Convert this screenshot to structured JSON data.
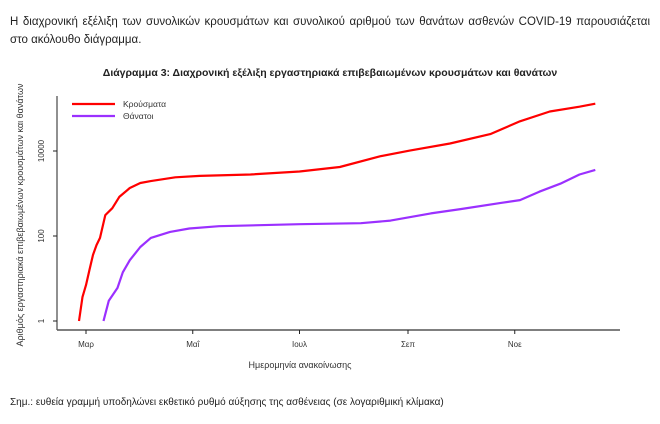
{
  "intro_text": "Η διαχρονική εξέλιξη των συνολικών κρουσμάτων και συνολικού αριθμού των θανάτων ασθενών COVID-19 παρουσιάζεται στο ακόλουθο διάγραμμα.",
  "note": "Σημ.: ευθεία γραμμή υποδηλώνει εκθετικό ρυθμό αύξησης της ασθένειας (σε λογαριθμική κλίμακα)",
  "chart_data": {
    "type": "line",
    "title": "Διάγραμμα 3: Διαχρονική εξέλιξη εργαστηριακά επιβεβαιωμένων κρουσμάτων και θανάτων",
    "xlabel": "Ημερομηνία ανακοίνωσης",
    "ylabel": "Αριθμός εργαστηριακά επιβεβαιωμένων κρουσμάτων και θανάτων",
    "y_scale": "log",
    "ylim": [
      1,
      200000
    ],
    "xlim_days_since_mar1": [
      -8,
      300
    ],
    "x_ticks": [
      {
        "label": "Μαρ",
        "day": 0
      },
      {
        "label": "Μαΐ",
        "day": 61
      },
      {
        "label": "Ιουλ",
        "day": 122
      },
      {
        "label": "Σεπ",
        "day": 184
      },
      {
        "label": "Νοε",
        "day": 245
      }
    ],
    "y_ticks": [
      {
        "label": "1",
        "value": 1
      },
      {
        "label": "100",
        "value": 100
      },
      {
        "label": "10000",
        "value": 10000
      }
    ],
    "legend_position": "top-left",
    "x_unit": "days since 1 March",
    "series": [
      {
        "name": "Κρούσματα",
        "color": "#ff0000",
        "points": [
          [
            -4,
            1
          ],
          [
            -2,
            3.7
          ],
          [
            0,
            7
          ],
          [
            2,
            16
          ],
          [
            4,
            36
          ],
          [
            6,
            61
          ],
          [
            8,
            90
          ],
          [
            11,
            310
          ],
          [
            15,
            450
          ],
          [
            19,
            830
          ],
          [
            25,
            1350
          ],
          [
            31,
            1770
          ],
          [
            37,
            1960
          ],
          [
            51,
            2400
          ],
          [
            65,
            2600
          ],
          [
            94,
            2800
          ],
          [
            122,
            3300
          ],
          [
            145,
            4200
          ],
          [
            168,
            7500
          ],
          [
            185,
            10200
          ],
          [
            208,
            15000
          ],
          [
            231,
            25000
          ],
          [
            248,
            50000
          ],
          [
            265,
            85000
          ],
          [
            282,
            110000
          ],
          [
            291,
            130000
          ]
        ]
      },
      {
        "name": "Θάνατοι",
        "color": "#9b30ff",
        "points": [
          [
            10,
            1
          ],
          [
            13,
            3
          ],
          [
            18,
            6
          ],
          [
            21,
            14
          ],
          [
            25,
            27
          ],
          [
            31,
            55
          ],
          [
            37,
            90
          ],
          [
            48,
            125
          ],
          [
            59,
            150
          ],
          [
            76,
            170
          ],
          [
            122,
            190
          ],
          [
            157,
            200
          ],
          [
            174,
            230
          ],
          [
            197,
            340
          ],
          [
            214,
            430
          ],
          [
            237,
            600
          ],
          [
            248,
            700
          ],
          [
            259,
            1100
          ],
          [
            271,
            1700
          ],
          [
            282,
            2800
          ],
          [
            291,
            3600
          ]
        ]
      }
    ]
  }
}
